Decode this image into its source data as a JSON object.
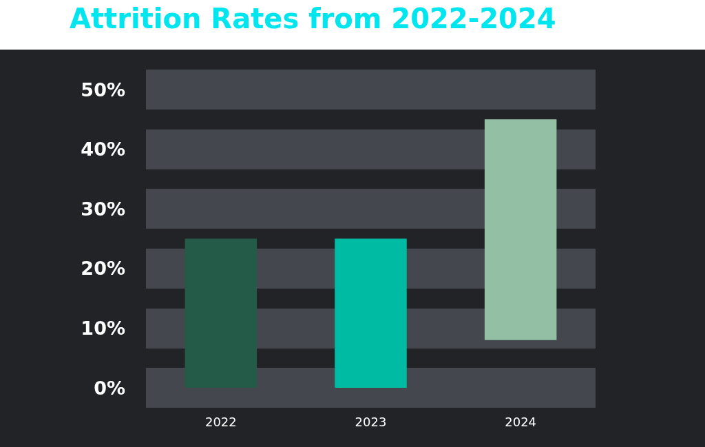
{
  "chart_data": {
    "type": "bar",
    "title": "Attrition Rates from 2022-2024",
    "categories": [
      "2022",
      "2023",
      "2024"
    ],
    "values": [
      25,
      25,
      37
    ],
    "base": [
      0,
      0,
      8
    ],
    "colors": [
      "#235a48",
      "#00bba3",
      "#93c0a4"
    ],
    "ylim": [
      0,
      50
    ],
    "yticks": [
      {
        "value": 0,
        "label": "0%"
      },
      {
        "value": 10,
        "label": "10%"
      },
      {
        "value": 20,
        "label": "20%"
      },
      {
        "value": 30,
        "label": "30%"
      },
      {
        "value": 40,
        "label": "40%"
      },
      {
        "value": 50,
        "label": "50%"
      }
    ],
    "grid": "y"
  }
}
